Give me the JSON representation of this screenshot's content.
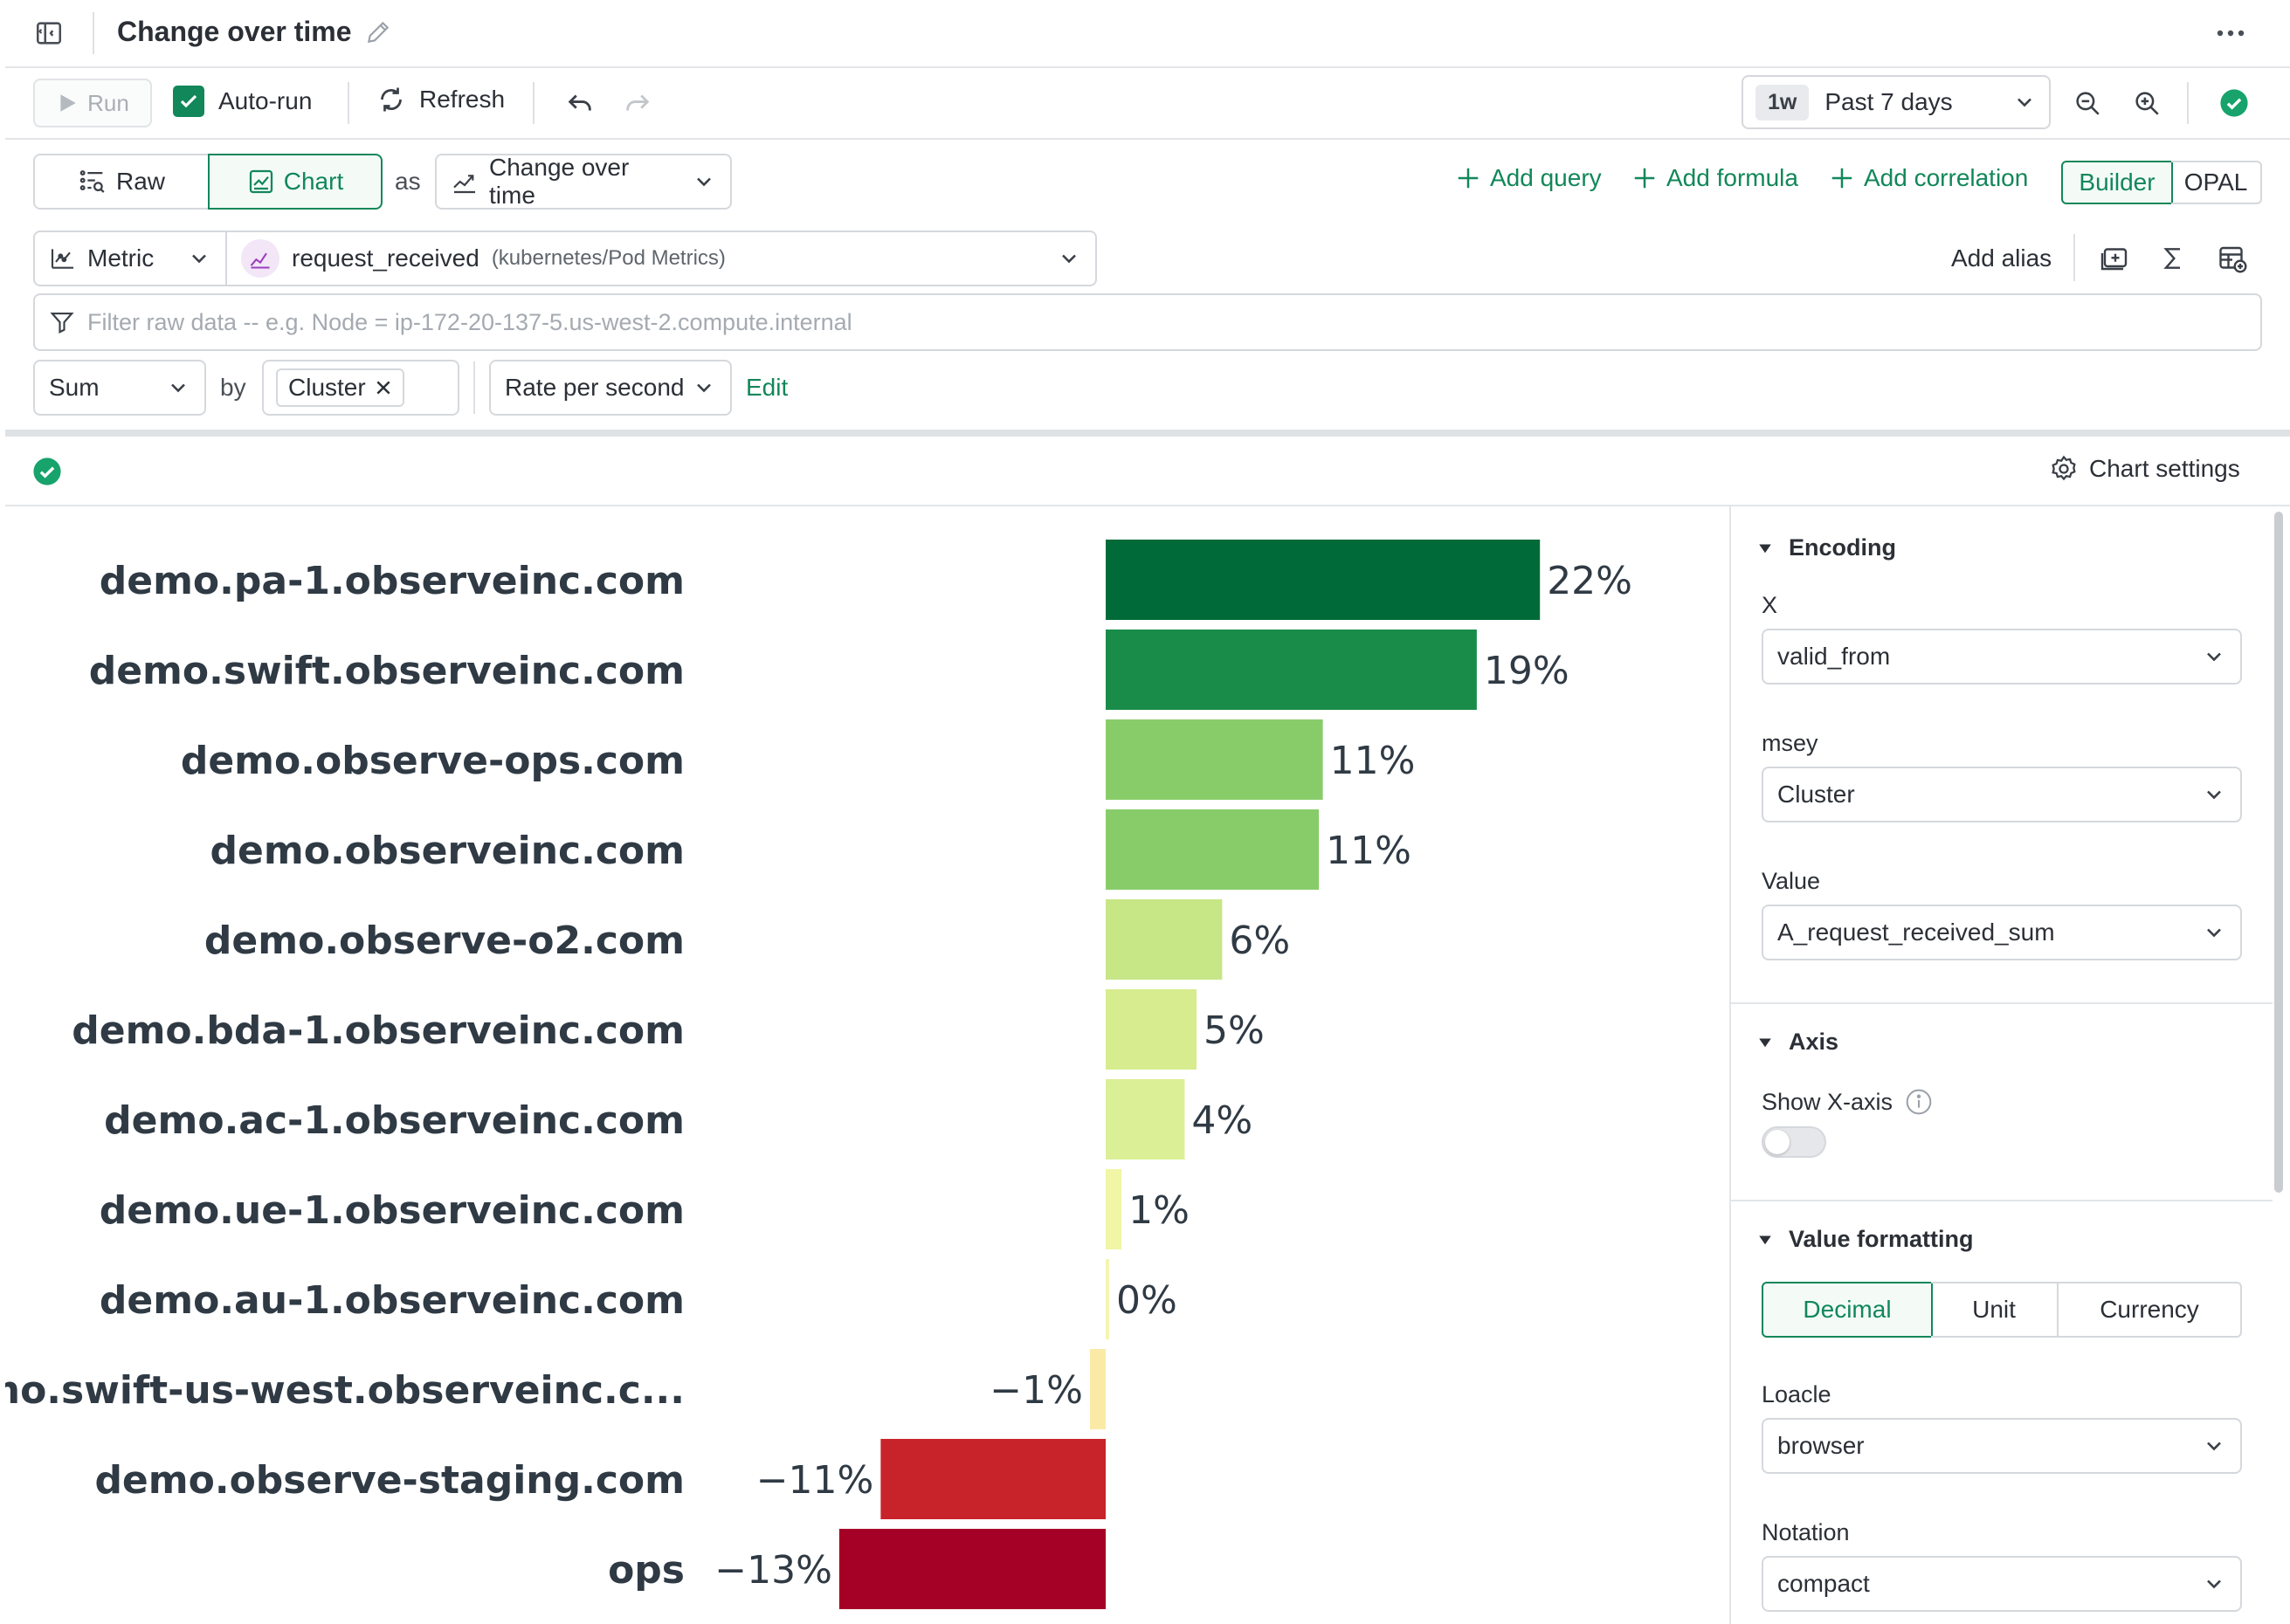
{
  "header": {
    "title": "Change over time"
  },
  "toolbar": {
    "run_label": "Run",
    "autorun_label": "Auto-run",
    "autorun_checked": true,
    "refresh_label": "Refresh",
    "time_pill": "1w",
    "time_range": "Past 7 days"
  },
  "view": {
    "raw_label": "Raw",
    "chart_label": "Chart",
    "as_label": "as",
    "chart_type": "Change over time",
    "add_query": "Add query",
    "add_formula": "Add formula",
    "add_correlation": "Add correlation",
    "builder_label": "Builder",
    "opal_label": "OPAL"
  },
  "query": {
    "source_type": "Metric",
    "metric_name": "request_received",
    "metric_dataset": "(kubernetes/Pod Metrics)",
    "add_alias": "Add alias",
    "filter_placeholder": "Filter raw data -- e.g. Node = ip-172-20-137-5.us-west-2.compute.internal",
    "aggregation": "Sum",
    "by_label": "by",
    "group_tag": "Cluster",
    "rate": "Rate per second",
    "edit_label": "Edit"
  },
  "result_bar": {
    "chart_settings_label": "Chart settings"
  },
  "chart_data": {
    "type": "bar",
    "orientation": "horizontal",
    "categories": [
      "demo.pa-1.observeinc.com",
      "demo.swift.observeinc.com",
      "demo.observe-ops.com",
      "demo.observeinc.com",
      "demo.observe-o2.com",
      "demo.bda-1.observeinc.com",
      "demo.ac-1.observeinc.com",
      "demo.ue-1.observeinc.com",
      "demo.au-1.observeinc.com",
      "demo.swift-us-west.observeinc.c...",
      "demo.observe-staging.com",
      "ops"
    ],
    "values": [
      22,
      18.8,
      11,
      10.8,
      5.9,
      4.6,
      4,
      0.8,
      0.1,
      -0.8,
      -11.4,
      -13.5
    ],
    "labels": [
      "22%",
      "19%",
      "11%",
      "11%",
      "6%",
      "5%",
      "4%",
      "1%",
      "0%",
      "−1%",
      "−11%",
      "−13%"
    ],
    "colors": [
      "#006b38",
      "#1a8c4a",
      "#88cc6a",
      "#88cc6a",
      "#c7e686",
      "#d6ec8f",
      "#dbef97",
      "#f1f5a6",
      "#f6f5b0",
      "#fbeaa6",
      "#c8232b",
      "#a50026"
    ],
    "x_axis_shown": false,
    "grid": false
  },
  "panel": {
    "encoding_title": "Encoding",
    "x_label": "X",
    "x_value": "valid_from",
    "key_label": "msey",
    "key_value": "Cluster",
    "value_label": "Value",
    "value_value": "A_request_received_sum",
    "axis_title": "Axis",
    "show_x_axis_label": "Show X-axis",
    "show_x_axis_on": false,
    "format_title": "Value formatting",
    "format_tabs": [
      "Decimal",
      "Unit",
      "Currency"
    ],
    "format_selected": "Decimal",
    "locale_label": "Loacle",
    "locale_value": "browser",
    "notation_label": "Notation",
    "notation_value": "compact"
  }
}
